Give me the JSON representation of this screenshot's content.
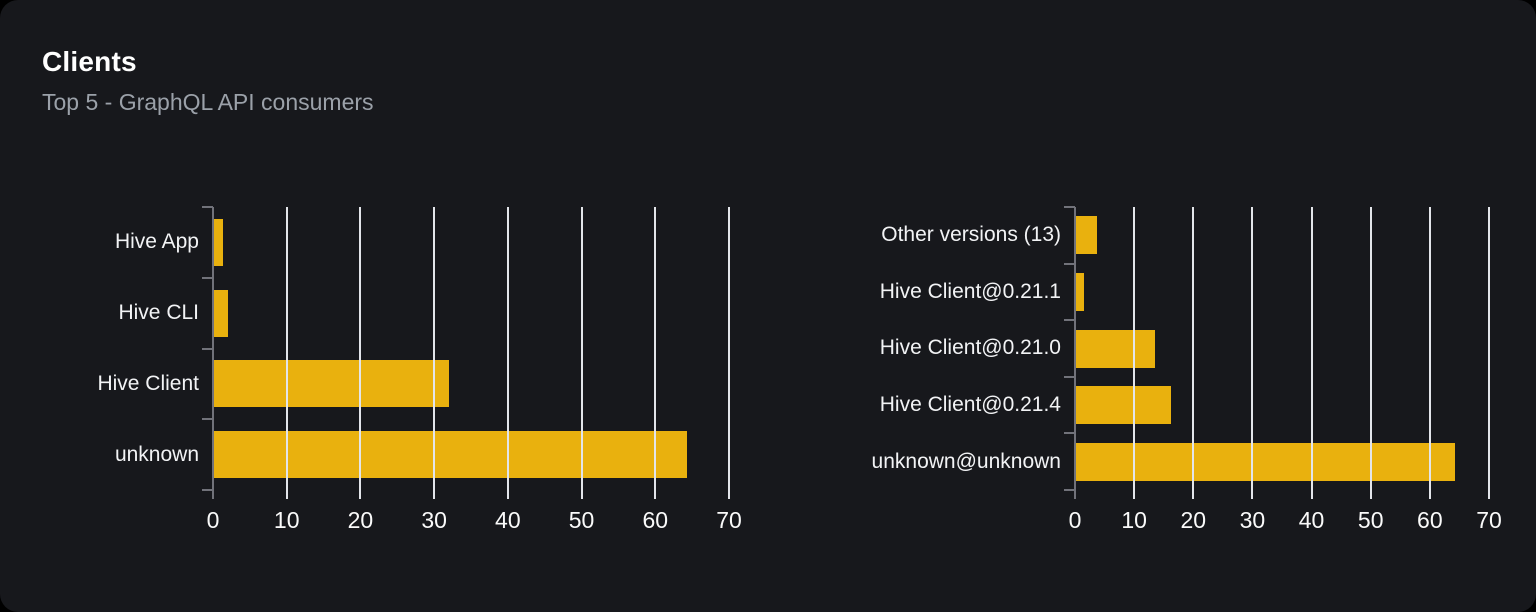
{
  "card": {
    "title": "Clients",
    "subtitle": "Top 5 - GraphQL API consumers"
  },
  "colors": {
    "page_bg": "#000000",
    "card_bg": "#17181c",
    "bar": "#e9b10e",
    "grid_line": "#e3e5ea",
    "axis_line": "#71727a",
    "title_text": "#ffffff",
    "subtitle_text": "#9ba1a9",
    "category_text": "#f2f3f5",
    "tick_text": "#fafafa"
  },
  "chart_data": [
    {
      "type": "bar",
      "orientation": "horizontal",
      "name": "clients-by-name",
      "title": "",
      "xlabel": "",
      "ylabel": "",
      "categories": [
        "Hive App",
        "Hive CLI",
        "Hive Client",
        "unknown"
      ],
      "values": [
        1.3,
        2,
        32,
        64.3
      ],
      "xlim": [
        0,
        70
      ],
      "xticks": [
        0,
        10,
        20,
        30,
        40,
        50,
        60,
        70
      ],
      "grid": true,
      "legend": false,
      "gridlines_over_bars": true
    },
    {
      "type": "bar",
      "orientation": "horizontal",
      "name": "clients-by-version",
      "title": "",
      "xlabel": "",
      "ylabel": "",
      "categories": [
        "Other versions (13)",
        "Hive Client@0.21.1",
        "Hive Client@0.21.0",
        "Hive Client@0.21.4",
        "unknown@unknown"
      ],
      "values": [
        3.7,
        1.5,
        13.5,
        16.3,
        64.3
      ],
      "xlim": [
        0,
        70
      ],
      "xticks": [
        0,
        10,
        20,
        30,
        40,
        50,
        60,
        70
      ],
      "grid": true,
      "legend": false,
      "gridlines_over_bars": true
    }
  ]
}
